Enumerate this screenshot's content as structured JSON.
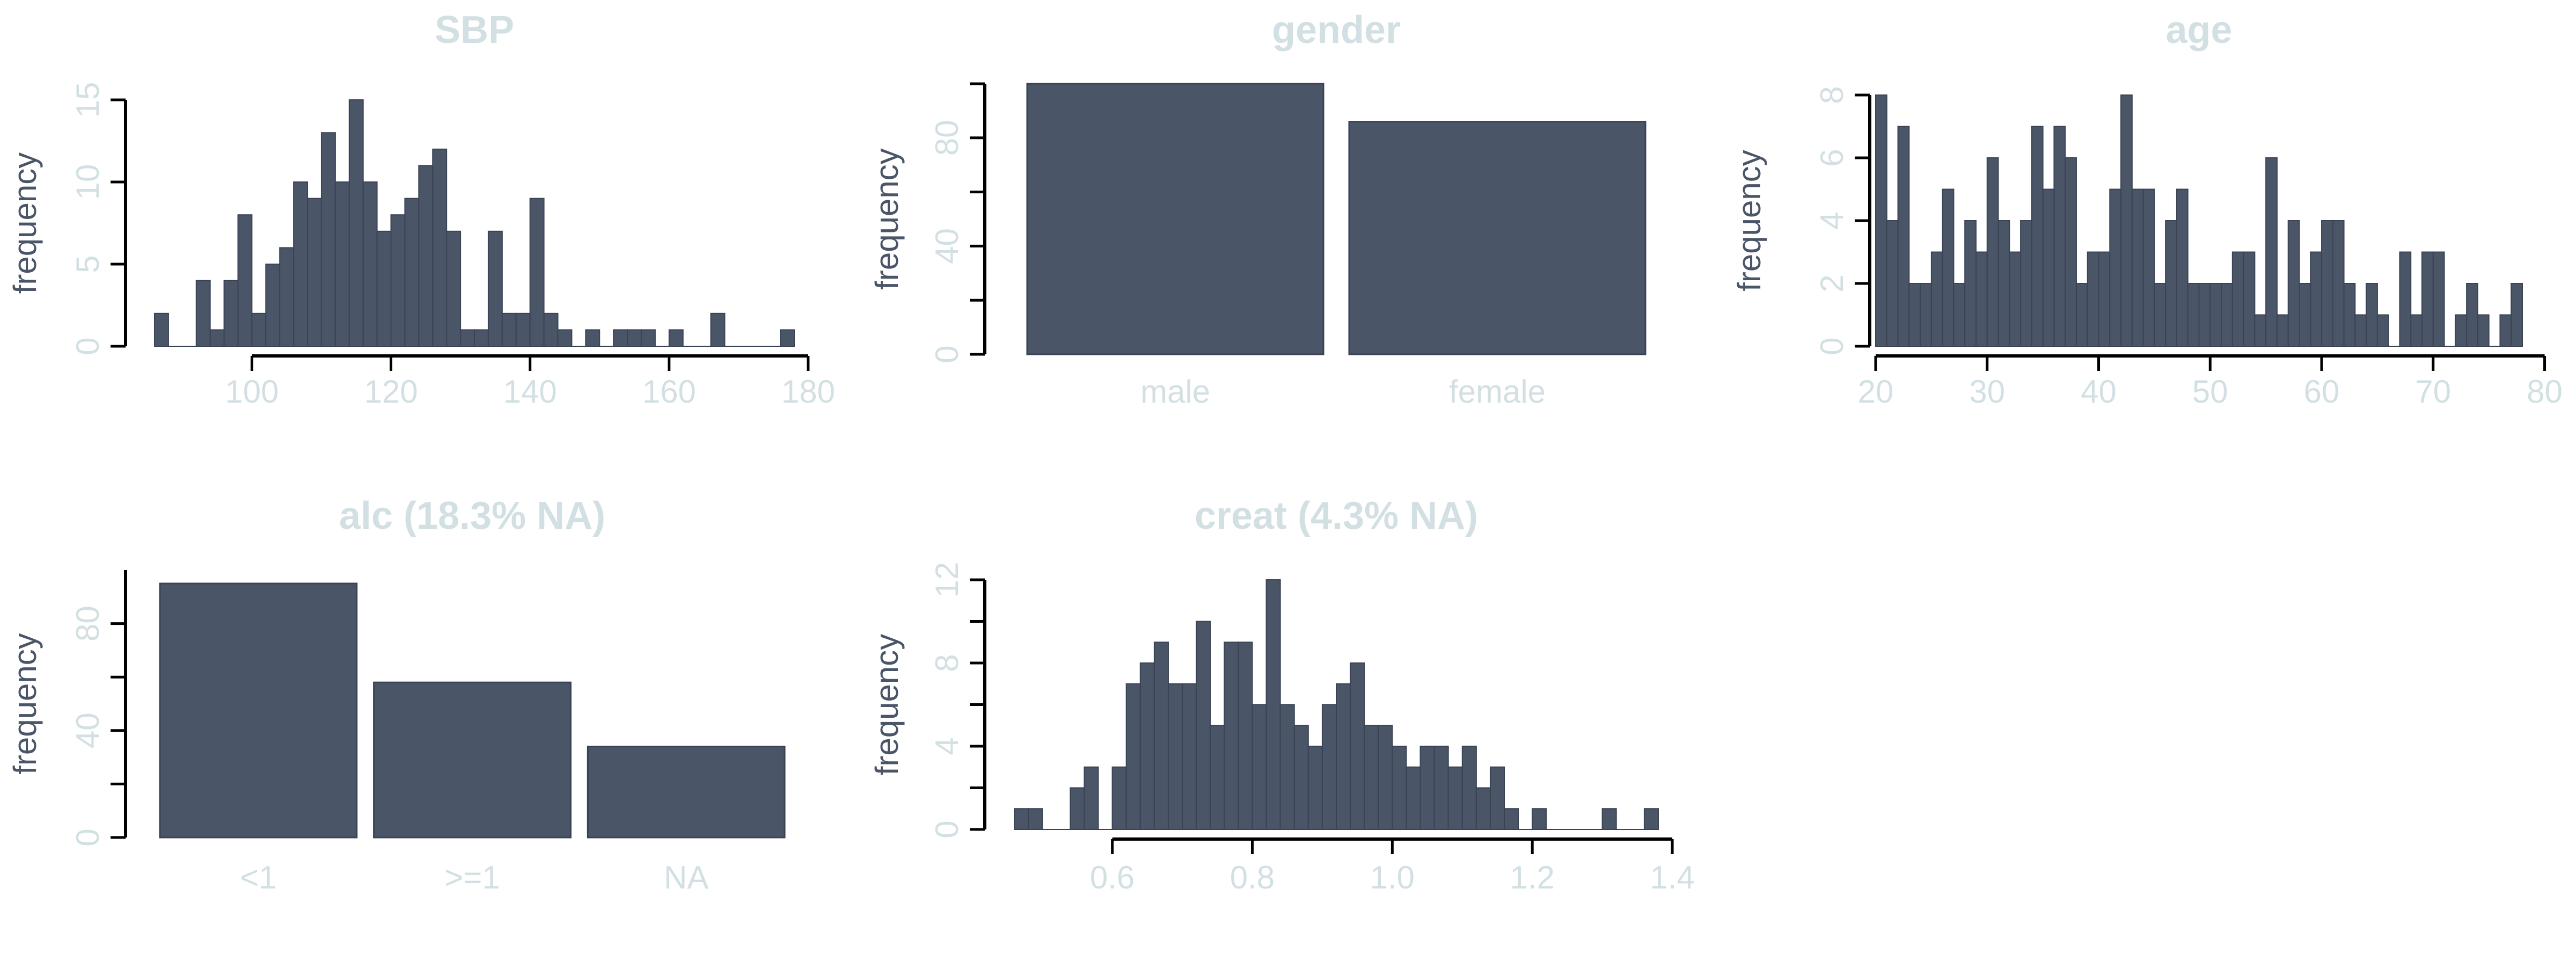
{
  "style": {
    "bar_fill": "#4a5568",
    "bar_stroke": "#3a4354",
    "axis_color": "#000000",
    "title_color": "#d3e0e3",
    "tick_label_color": "#d3e0e3",
    "ylabel_color": "#4a5568"
  },
  "chart_data": [
    {
      "type": "bar",
      "histogram": true,
      "title": "SBP",
      "ylabel": "frequency",
      "bin_start": 86,
      "bin_width": 2,
      "values": [
        2,
        0,
        0,
        4,
        1,
        4,
        8,
        2,
        5,
        6,
        10,
        9,
        13,
        10,
        15,
        10,
        7,
        8,
        9,
        11,
        12,
        7,
        1,
        1,
        7,
        2,
        2,
        9,
        2,
        1,
        0,
        1,
        0,
        1,
        1,
        1,
        0,
        1,
        0,
        0,
        2,
        0,
        0,
        0,
        0,
        1
      ],
      "xlim": [
        86,
        178
      ],
      "xaxis_range": [
        100,
        180
      ],
      "xticks": [
        100,
        120,
        140,
        160,
        180
      ],
      "ylim": [
        0,
        15
      ],
      "yticks": [
        0,
        5,
        10,
        15
      ]
    },
    {
      "type": "bar",
      "title": "gender",
      "ylabel": "frequency",
      "categories": [
        "male",
        "female"
      ],
      "values": [
        100,
        86
      ],
      "ylim": [
        0,
        100
      ],
      "yticks": [
        0,
        40,
        80
      ],
      "yminor": [
        20,
        60,
        100
      ]
    },
    {
      "type": "bar",
      "histogram": true,
      "title": "age",
      "ylabel": "frequency",
      "bin_start": 20,
      "bin_width": 1,
      "values": [
        8,
        4,
        7,
        2,
        2,
        3,
        5,
        2,
        4,
        3,
        6,
        4,
        3,
        4,
        7,
        5,
        7,
        6,
        2,
        3,
        3,
        5,
        8,
        5,
        5,
        2,
        4,
        5,
        2,
        2,
        2,
        2,
        3,
        3,
        1,
        6,
        1,
        4,
        2,
        3,
        4,
        4,
        2,
        1,
        2,
        1,
        0,
        3,
        1,
        3,
        3,
        0,
        1,
        2,
        1,
        0,
        1,
        2
      ],
      "xlim": [
        20,
        78
      ],
      "xaxis_range": [
        20,
        80
      ],
      "xticks": [
        20,
        30,
        40,
        50,
        60,
        70,
        80
      ],
      "ylim": [
        0,
        8
      ],
      "yticks": [
        0,
        2,
        4,
        6,
        8
      ]
    },
    {
      "type": "bar",
      "title": "alc (18.3% NA)",
      "ylabel": "frequency",
      "categories": [
        "<1",
        ">=1",
        "NA"
      ],
      "values": [
        95,
        58,
        34
      ],
      "ylim": [
        0,
        100
      ],
      "yticks": [
        0,
        40,
        80
      ],
      "yminor": [
        20,
        60
      ]
    },
    {
      "type": "bar",
      "histogram": true,
      "title": "creat (4.3% NA)",
      "ylabel": "frequency",
      "bin_start": 0.46,
      "bin_width": 0.02,
      "values": [
        1,
        1,
        0,
        0,
        2,
        3,
        0,
        3,
        7,
        8,
        9,
        7,
        7,
        10,
        5,
        9,
        9,
        6,
        12,
        6,
        5,
        4,
        6,
        7,
        8,
        5,
        5,
        4,
        3,
        4,
        4,
        3,
        4,
        2,
        3,
        1,
        0,
        1,
        0,
        0,
        0,
        0,
        1,
        0,
        0,
        1
      ],
      "xlim": [
        0.46,
        1.38
      ],
      "xaxis_range": [
        0.6,
        1.4
      ],
      "xticks": [
        0.6,
        0.8,
        1.0,
        1.2,
        1.4
      ],
      "xtick_labels": [
        "0.6",
        "0.8",
        "1.0",
        "1.2",
        "1.4"
      ],
      "ylim": [
        0,
        12
      ],
      "yticks": [
        0,
        4,
        8,
        12
      ],
      "yminor": [
        2,
        6,
        10
      ]
    }
  ]
}
